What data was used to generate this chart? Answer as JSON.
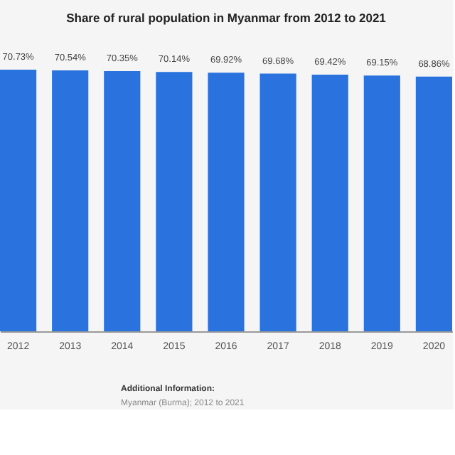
{
  "chart_data": {
    "type": "bar",
    "title": "Share of rural population in Myanmar from 2012 to 2021",
    "categories": [
      "2012",
      "2013",
      "2014",
      "2015",
      "2016",
      "2017",
      "2018",
      "2019",
      "2020"
    ],
    "values": [
      70.73,
      70.54,
      70.35,
      70.14,
      69.92,
      69.68,
      69.42,
      69.15,
      68.86
    ],
    "value_labels": [
      "70.73%",
      "70.54%",
      "70.35%",
      "70.14%",
      "69.92%",
      "69.68%",
      "69.42%",
      "69.15%",
      "68.86%"
    ],
    "color": "#2a72dd",
    "tick_labels": "x",
    "annotations": [
      "Additional Information:",
      "Myanmar (Burma); 2012 to 2021"
    ]
  }
}
